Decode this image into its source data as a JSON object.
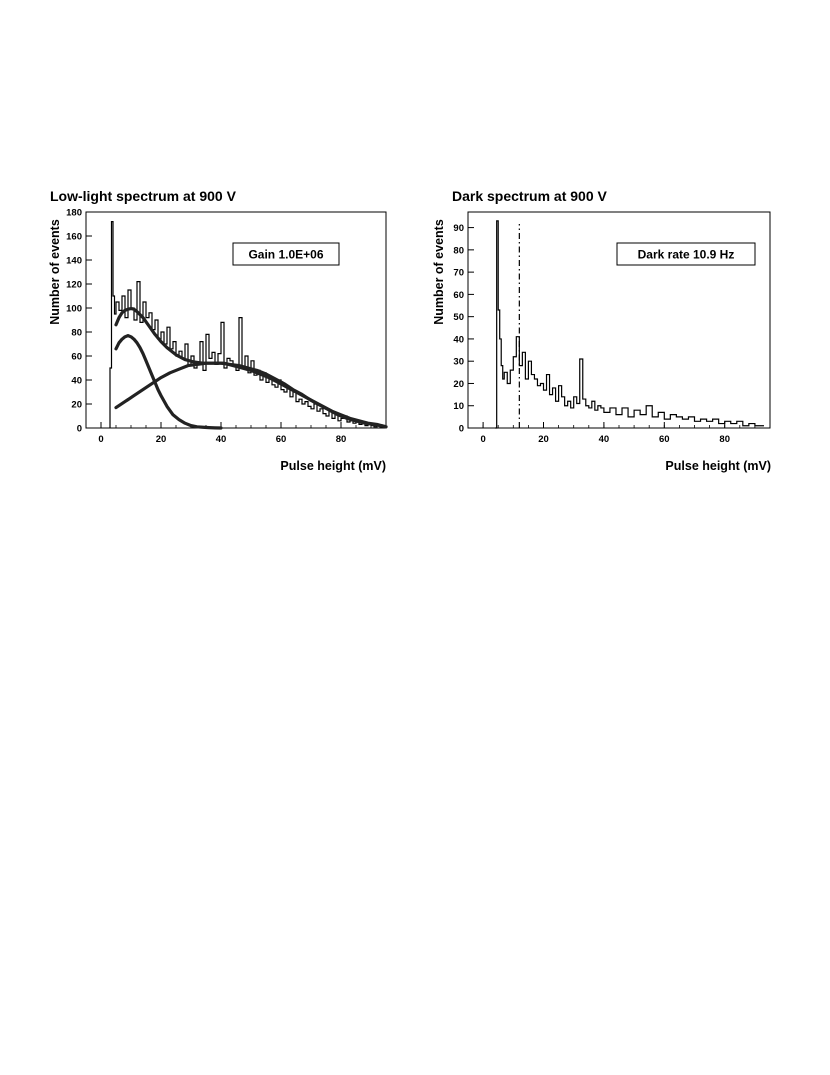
{
  "chart_data": [
    {
      "type": "line",
      "title": "Low-light spectrum at 900 V",
      "xlabel": "Pulse height (mV)",
      "ylabel": "Number of events",
      "annotation": "Gain 1.0E+06",
      "xlim": [
        -5,
        95
      ],
      "ylim": [
        0,
        180
      ],
      "xticks": [
        0,
        20,
        40,
        60,
        80
      ],
      "yticks": [
        0,
        20,
        40,
        60,
        80,
        100,
        120,
        140,
        160,
        180
      ],
      "grid": false,
      "series": [
        {
          "style": "histogram",
          "x": [
            3,
            3.5,
            4,
            4.5,
            5,
            6,
            7,
            8,
            9,
            10,
            11,
            12,
            13,
            14,
            15,
            16,
            17,
            18,
            19,
            20,
            21,
            22,
            23,
            24,
            25,
            26,
            27,
            28,
            29,
            30,
            31,
            32,
            33,
            34,
            35,
            36,
            37,
            38,
            39,
            40,
            41,
            42,
            43,
            44,
            45,
            46,
            47,
            48,
            49,
            50,
            51,
            52,
            53,
            54,
            55,
            56,
            57,
            58,
            59,
            60,
            61,
            62,
            63,
            64,
            65,
            66,
            67,
            68,
            69,
            70,
            71,
            72,
            73,
            74,
            75,
            76,
            77,
            78,
            79,
            80,
            81,
            82,
            83,
            84,
            85,
            86,
            87,
            88,
            89,
            90,
            91,
            92,
            93,
            94
          ],
          "y": [
            50,
            172,
            110,
            95,
            105,
            98,
            110,
            92,
            115,
            100,
            90,
            122,
            88,
            105,
            92,
            96,
            82,
            90,
            74,
            80,
            70,
            84,
            66,
            72,
            60,
            64,
            58,
            70,
            52,
            60,
            50,
            55,
            72,
            48,
            78,
            58,
            63,
            53,
            62,
            88,
            50,
            58,
            56,
            52,
            48,
            92,
            50,
            60,
            46,
            56,
            44,
            48,
            40,
            46,
            38,
            42,
            36,
            34,
            40,
            32,
            30,
            34,
            26,
            30,
            22,
            24,
            20,
            22,
            18,
            16,
            20,
            14,
            16,
            12,
            10,
            14,
            8,
            12,
            6,
            8,
            10,
            5,
            6,
            4,
            5,
            3,
            4,
            2,
            3,
            2,
            1,
            2,
            1,
            1
          ]
        },
        {
          "style": "fit",
          "x": [
            5,
            6,
            7,
            8,
            9,
            10,
            11,
            12,
            14,
            16,
            18,
            20,
            22,
            25,
            28,
            31,
            34,
            37,
            40,
            43,
            46,
            49,
            52,
            55,
            58,
            61,
            64,
            67,
            70,
            73,
            76,
            79,
            82,
            85,
            88,
            91,
            95
          ],
          "y": [
            86,
            92,
            96,
            98,
            99,
            99.5,
            99,
            97,
            92,
            85,
            78,
            72,
            67,
            61,
            57,
            55,
            54,
            54,
            54,
            53,
            52,
            50,
            48,
            45,
            41,
            37,
            32,
            28,
            23,
            19,
            15,
            11,
            8,
            6,
            4,
            3,
            1
          ]
        },
        {
          "style": "fit",
          "x": [
            5,
            6,
            7,
            8,
            9,
            10,
            11,
            12,
            13,
            14,
            15,
            16,
            17,
            18,
            19,
            20,
            22,
            24,
            26,
            28,
            30,
            32,
            34,
            36,
            38,
            40
          ],
          "y": [
            66,
            71,
            74,
            76,
            77,
            76,
            74,
            71,
            67,
            62,
            56,
            50,
            44,
            38,
            32,
            27,
            18,
            11,
            7,
            4,
            2,
            1,
            0.6,
            0.3,
            0.1,
            0
          ]
        },
        {
          "style": "fit",
          "x": [
            5,
            8,
            11,
            14,
            17,
            20,
            23,
            26,
            29,
            32,
            35,
            38,
            41,
            44,
            47,
            50,
            53,
            56,
            59,
            62,
            65,
            68,
            71,
            74,
            77,
            80,
            83,
            86,
            89,
            92,
            95
          ],
          "y": [
            17,
            22,
            27,
            32,
            37,
            42,
            46,
            49,
            52,
            53,
            54,
            54,
            54,
            52,
            50,
            48,
            45,
            42,
            38,
            34,
            30,
            26,
            22,
            18,
            14,
            11,
            8,
            6,
            4,
            3,
            1
          ]
        }
      ]
    },
    {
      "type": "line",
      "title": "Dark spectrum at 900 V",
      "xlabel": "Pulse height (mV)",
      "ylabel": "Number of events",
      "annotation": "Dark rate 10.9 Hz",
      "xlim": [
        -5,
        95
      ],
      "ylim": [
        0,
        97
      ],
      "xticks": [
        0,
        20,
        40,
        60,
        80
      ],
      "yticks": [
        0,
        10,
        20,
        30,
        40,
        50,
        60,
        70,
        80,
        90
      ],
      "grid": false,
      "threshold_x": 12,
      "series": [
        {
          "style": "histogram",
          "x": [
            4,
            4.5,
            5,
            5.5,
            6,
            6.5,
            7,
            8,
            9,
            10,
            11,
            12,
            13,
            14,
            15,
            16,
            17,
            18,
            19,
            20,
            21,
            22,
            23,
            24,
            25,
            26,
            27,
            28,
            29,
            30,
            31,
            32,
            33,
            34,
            35,
            36,
            37,
            38,
            39,
            40,
            42,
            44,
            46,
            48,
            50,
            52,
            54,
            56,
            58,
            60,
            62,
            64,
            66,
            68,
            70,
            72,
            74,
            76,
            78,
            80,
            82,
            84,
            86,
            88,
            90,
            92
          ],
          "y": [
            0,
            93,
            53,
            40,
            28,
            22,
            25,
            20,
            26,
            32,
            41,
            28,
            34,
            22,
            30,
            24,
            22,
            19,
            20,
            17,
            24,
            15,
            18,
            12,
            19,
            14,
            10,
            12,
            9,
            14,
            11,
            31,
            13,
            10,
            9,
            12,
            8,
            10,
            9,
            7,
            9,
            6,
            9,
            5,
            8,
            6,
            10,
            5,
            7,
            4,
            6,
            5,
            4,
            5,
            3,
            4,
            3,
            4,
            2,
            3,
            2,
            3,
            1,
            2,
            1,
            1
          ]
        }
      ]
    }
  ]
}
